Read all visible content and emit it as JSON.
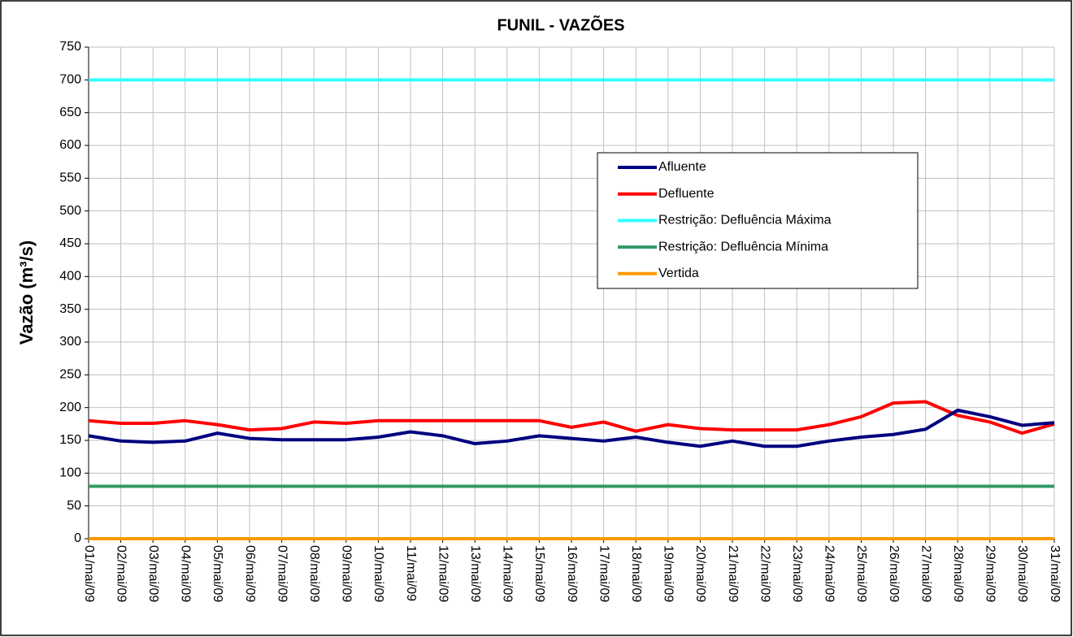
{
  "chart_data": {
    "type": "line",
    "title": "FUNIL - VAZÕES",
    "y_label": "Vazão (m³/s)",
    "categories": [
      "01/mai/09",
      "02/mai/09",
      "03/mai/09",
      "04/mai/09",
      "05/mai/09",
      "06/mai/09",
      "07/mai/09",
      "08/mai/09",
      "09/mai/09",
      "10/mai/09",
      "11/mai/09",
      "12/mai/09",
      "13/mai/09",
      "14/mai/09",
      "15/mai/09",
      "16/mai/09",
      "17/mai/09",
      "18/mai/09",
      "19/mai/09",
      "20/mai/09",
      "21/mai/09",
      "22/mai/09",
      "23/mai/09",
      "24/mai/09",
      "25/mai/09",
      "26/mai/09",
      "27/mai/09",
      "28/mai/09",
      "29/mai/09",
      "30/mai/09",
      "31/mai/09"
    ],
    "series": [
      {
        "name": "Afluente",
        "color": "#000080",
        "values": [
          157,
          149,
          147,
          149,
          161,
          153,
          151,
          151,
          151,
          155,
          163,
          157,
          145,
          149,
          157,
          153,
          149,
          155,
          147,
          141,
          149,
          141,
          141,
          149,
          155,
          159,
          167,
          196,
          186,
          173,
          177
        ]
      },
      {
        "name": "Defluente",
        "color": "#ff0000",
        "values": [
          180,
          176,
          176,
          180,
          174,
          166,
          168,
          178,
          176,
          180,
          180,
          180,
          180,
          180,
          180,
          170,
          178,
          164,
          174,
          168,
          166,
          166,
          166,
          174,
          186,
          207,
          209,
          188,
          178,
          161,
          175
        ]
      },
      {
        "name": "Restrição: Defluência Máxima",
        "color": "#33ffff",
        "values": [
          700,
          700,
          700,
          700,
          700,
          700,
          700,
          700,
          700,
          700,
          700,
          700,
          700,
          700,
          700,
          700,
          700,
          700,
          700,
          700,
          700,
          700,
          700,
          700,
          700,
          700,
          700,
          700,
          700,
          700,
          700
        ]
      },
      {
        "name": "Restrição: Defluência Mínima",
        "color": "#339966",
        "values": [
          80,
          80,
          80,
          80,
          80,
          80,
          80,
          80,
          80,
          80,
          80,
          80,
          80,
          80,
          80,
          80,
          80,
          80,
          80,
          80,
          80,
          80,
          80,
          80,
          80,
          80,
          80,
          80,
          80,
          80,
          80
        ]
      },
      {
        "name": "Vertida",
        "color": "#ff9900",
        "values": [
          0,
          0,
          0,
          0,
          0,
          0,
          0,
          0,
          0,
          0,
          0,
          0,
          0,
          0,
          0,
          0,
          0,
          0,
          0,
          0,
          0,
          0,
          0,
          0,
          0,
          0,
          0,
          0,
          0,
          0,
          0
        ]
      }
    ],
    "ylim": [
      0,
      750
    ],
    "yticks": [
      0,
      50,
      100,
      150,
      200,
      250,
      300,
      350,
      400,
      450,
      500,
      550,
      600,
      650,
      700,
      750
    ],
    "grid": true
  }
}
